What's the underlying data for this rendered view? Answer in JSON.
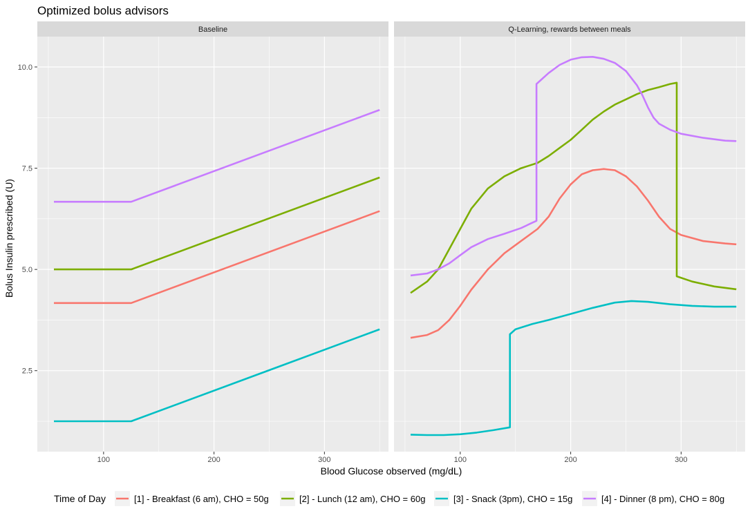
{
  "chart_data": {
    "type": "line",
    "title": "Optimized bolus advisors",
    "xlabel": "Blood Glucose observed (mg/dL)",
    "ylabel": "Bolus Insulin prescribed (U)",
    "xlim": [
      40,
      358
    ],
    "ylim": [
      0.5,
      10.75
    ],
    "x_ticks": [
      100,
      200,
      300
    ],
    "y_ticks": [
      2.5,
      5.0,
      7.5,
      10.0
    ],
    "y_tick_labels": [
      "2.5",
      "5.0",
      "7.5",
      "10.0"
    ],
    "grid": true,
    "legend": {
      "position": "bottom",
      "title": "Time of Day",
      "entries": [
        {
          "label": "[1] - Breakfast (6 am), CHO = 50g",
          "color": "#F8766D"
        },
        {
          "label": "[2] - Lunch (12 am), CHO = 60g",
          "color": "#7CAE00"
        },
        {
          "label": "[3] - Snack (3pm), CHO = 15g",
          "color": "#00BFC4"
        },
        {
          "label": "[4] - Dinner (8 pm), CHO = 80g",
          "color": "#C77CFF"
        }
      ]
    },
    "facets": [
      {
        "strip": "Baseline",
        "series": [
          {
            "color": "#F8766D",
            "x": [
              55,
              125,
              350
            ],
            "y": [
              4.17,
              4.17,
              6.44
            ]
          },
          {
            "color": "#7CAE00",
            "x": [
              55,
              125,
              350
            ],
            "y": [
              5.0,
              5.0,
              7.27
            ]
          },
          {
            "color": "#00BFC4",
            "x": [
              55,
              125,
              350
            ],
            "y": [
              1.25,
              1.25,
              3.52
            ]
          },
          {
            "color": "#C77CFF",
            "x": [
              55,
              125,
              350
            ],
            "y": [
              6.67,
              6.67,
              8.94
            ]
          }
        ]
      },
      {
        "strip": "Q-Learning, rewards between meals",
        "series": [
          {
            "color": "#F8766D",
            "x": [
              55,
              70,
              80,
              90,
              100,
              110,
              125,
              140,
              155,
              170,
              180,
              190,
              200,
              210,
              220,
              230,
              240,
              250,
              260,
              270,
              280,
              290,
              300,
              320,
              340,
              350
            ],
            "y": [
              3.31,
              3.38,
              3.5,
              3.75,
              4.1,
              4.5,
              5.0,
              5.4,
              5.7,
              6.0,
              6.3,
              6.75,
              7.1,
              7.35,
              7.45,
              7.48,
              7.45,
              7.3,
              7.05,
              6.7,
              6.3,
              6.0,
              5.85,
              5.7,
              5.64,
              5.62
            ]
          },
          {
            "color": "#7CAE00",
            "x": [
              55,
              70,
              80,
              90,
              100,
              110,
              125,
              140,
              155,
              170,
              180,
              190,
              200,
              210,
              220,
              230,
              240,
              250,
              260,
              270,
              280,
              290,
              296,
              296,
              310,
              330,
              350
            ],
            "y": [
              4.42,
              4.7,
              5.0,
              5.5,
              6.0,
              6.5,
              7.0,
              7.3,
              7.5,
              7.63,
              7.8,
              8.0,
              8.2,
              8.45,
              8.7,
              8.9,
              9.07,
              9.2,
              9.33,
              9.43,
              9.5,
              9.58,
              9.61,
              4.83,
              4.7,
              4.58,
              4.51
            ]
          },
          {
            "color": "#00BFC4",
            "x": [
              55,
              70,
              85,
              100,
              115,
              130,
              145,
              145,
              150,
              165,
              180,
              200,
              220,
              240,
              255,
              270,
              290,
              310,
              330,
              350
            ],
            "y": [
              0.92,
              0.91,
              0.91,
              0.93,
              0.97,
              1.03,
              1.1,
              3.4,
              3.52,
              3.65,
              3.75,
              3.9,
              4.05,
              4.18,
              4.22,
              4.2,
              4.14,
              4.1,
              4.08,
              4.08
            ]
          },
          {
            "color": "#C77CFF",
            "x": [
              55,
              70,
              80,
              90,
              100,
              110,
              125,
              140,
              155,
              165,
              169,
              169,
              180,
              190,
              200,
              210,
              220,
              230,
              240,
              250,
              260,
              265,
              270,
              275,
              280,
              290,
              300,
              320,
              340,
              350
            ],
            "y": [
              4.85,
              4.9,
              5.0,
              5.15,
              5.35,
              5.55,
              5.75,
              5.88,
              6.02,
              6.15,
              6.2,
              9.58,
              9.85,
              10.05,
              10.18,
              10.24,
              10.25,
              10.2,
              10.1,
              9.9,
              9.55,
              9.3,
              9.0,
              8.75,
              8.6,
              8.45,
              8.35,
              8.25,
              8.18,
              8.17
            ]
          }
        ]
      }
    ]
  }
}
